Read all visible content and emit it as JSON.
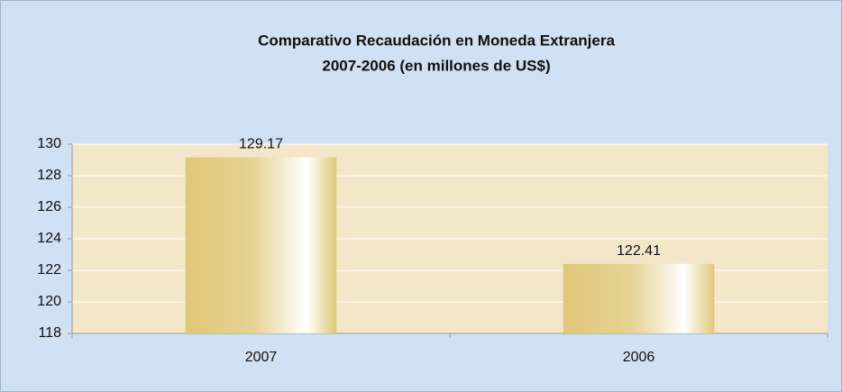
{
  "chart_data": {
    "type": "bar",
    "title": "Comparativo Recaudación en Moneda Extranjera",
    "subtitle": "2007-2006 (en millones de US$)",
    "categories": [
      "2007",
      "2006"
    ],
    "values": [
      129.17,
      122.41
    ],
    "color": "#e0c878",
    "ylim": [
      118,
      130
    ],
    "yticks": [
      118,
      120,
      122,
      124,
      126,
      128,
      130
    ],
    "grid": true,
    "data_labels": true
  }
}
